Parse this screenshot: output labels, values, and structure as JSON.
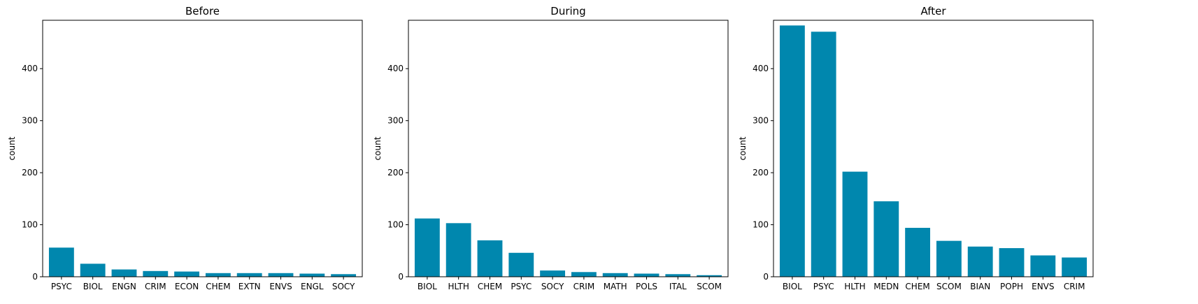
{
  "figure": {
    "background": "#ffffff"
  },
  "chart_data": [
    {
      "type": "bar",
      "title": "Before",
      "xlabel": "",
      "ylabel": "count",
      "ylim": [
        0,
        493
      ],
      "yticks": [
        0,
        100,
        200,
        300,
        400
      ],
      "color": "#0087ae",
      "categories": [
        "PSYC",
        "BIOL",
        "ENGN",
        "CRIM",
        "ECON",
        "CHEM",
        "EXTN",
        "ENVS",
        "ENGL",
        "SOCY"
      ],
      "values": [
        56,
        25,
        14,
        11,
        10,
        7,
        7,
        7,
        6,
        5
      ],
      "grid": false,
      "legend": false
    },
    {
      "type": "bar",
      "title": "During",
      "xlabel": "",
      "ylabel": "count",
      "ylim": [
        0,
        493
      ],
      "yticks": [
        0,
        100,
        200,
        300,
        400
      ],
      "color": "#0087ae",
      "categories": [
        "BIOL",
        "HLTH",
        "CHEM",
        "PSYC",
        "SOCY",
        "CRIM",
        "MATH",
        "POLS",
        "ITAL",
        "SCOM"
      ],
      "values": [
        112,
        103,
        70,
        46,
        12,
        9,
        7,
        6,
        5,
        3
      ],
      "grid": false,
      "legend": false
    },
    {
      "type": "bar",
      "title": "After",
      "xlabel": "",
      "ylabel": "count",
      "ylim": [
        0,
        493
      ],
      "yticks": [
        0,
        100,
        200,
        300,
        400
      ],
      "color": "#0087ae",
      "categories": [
        "BIOL",
        "PSYC",
        "HLTH",
        "MEDN",
        "CHEM",
        "SCOM",
        "BIAN",
        "POPH",
        "ENVS",
        "CRIM"
      ],
      "values": [
        483,
        471,
        202,
        145,
        94,
        69,
        58,
        55,
        41,
        37
      ],
      "grid": false,
      "legend": false
    }
  ]
}
